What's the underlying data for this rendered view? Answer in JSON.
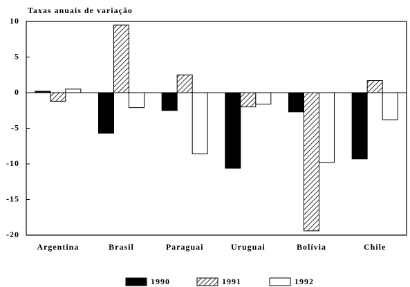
{
  "chart_data": {
    "type": "bar",
    "title": "Taxas anuais de variação",
    "categories": [
      "Argentina",
      "Brasil",
      "Paraguai",
      "Uruguai",
      "Bolívia",
      "Chile"
    ],
    "series": [
      {
        "name": "1990",
        "color": "#000000",
        "values": [
          0.2,
          -5.7,
          -2.5,
          -10.6,
          -2.7,
          -9.3
        ]
      },
      {
        "name": "1991",
        "color": "#000000",
        "hatch": true,
        "values": [
          -1.2,
          9.5,
          2.5,
          -2.0,
          -19.4,
          1.7
        ]
      },
      {
        "name": "1992",
        "color": "#ffffff",
        "values": [
          0.5,
          -2.1,
          -8.6,
          -1.6,
          -9.8,
          -3.8
        ]
      }
    ],
    "ylim": [
      -20,
      10
    ],
    "yticks": [
      -20,
      -15,
      -10,
      -5,
      0,
      5,
      10
    ],
    "legend": "bottom"
  }
}
